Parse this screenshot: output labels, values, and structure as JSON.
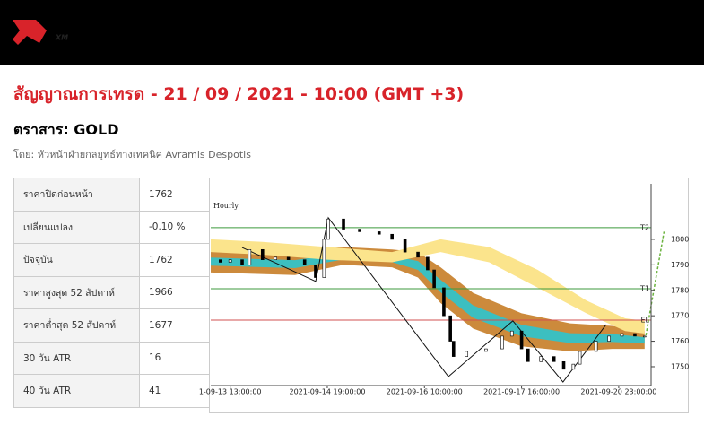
{
  "header": {
    "logo": "XM"
  },
  "title": "สัญญาณการเทรด - 21 / 09 / 2021 - 10:00 (GMT +3)",
  "instrument": "ตราสาร: GOLD",
  "byline": "โดย: หัวหน้าฝ่ายกลยุทธ์ทางเทคนิค Avramis Despotis",
  "table": {
    "rows": [
      [
        "ราคาปิดก่อนหน้า",
        "1762"
      ],
      [
        "เปลี่ยนแปลง",
        "-0.10 %"
      ],
      [
        "ปัจจุบัน",
        "1762"
      ],
      [
        "ราคาสูงสุด 52 สัปดาห์",
        "1966"
      ],
      [
        "ราคาต่ำสุด 52 สัปดาห์",
        "1677"
      ],
      [
        "30 วัน ATR",
        "16"
      ],
      [
        "40 วัน ATR",
        "41"
      ]
    ]
  },
  "chart_data": {
    "type": "candlestick",
    "title": "Hourly",
    "x": [
      -6,
      -3,
      0,
      3.7,
      6,
      10,
      14,
      18,
      23,
      26.4,
      29,
      30.3,
      35,
      40,
      46,
      50,
      54,
      58,
      61,
      63,
      66,
      68,
      69,
      73,
      79,
      84,
      87,
      90,
      92,
      96,
      100,
      103,
      106,
      108,
      113,
      117,
      121,
      125,
      128
    ],
    "values": [
      1792,
      1791,
      1792,
      1790,
      1796,
      1792,
      1793,
      1792,
      1790,
      1785,
      1800,
      1808,
      1804,
      1803,
      1802,
      1800,
      1795,
      1793,
      1788,
      1781,
      1770,
      1760,
      1754,
      1756,
      1757,
      1762,
      1764,
      1757,
      1752,
      1754,
      1752,
      1749,
      1751,
      1756,
      1760,
      1762,
      1763,
      1762,
      1762
    ],
    "bands": [
      {
        "color": "#cc8a3c",
        "x": [
          -6,
          20,
          35,
          50,
          58,
          65,
          75,
          90,
          105,
          118,
          128
        ],
        "upper": [
          1796,
          1795,
          1797,
          1796,
          1795,
          1789,
          1779,
          1771,
          1767,
          1766,
          1764
        ],
        "lower": [
          1787,
          1786,
          1790,
          1789,
          1785,
          1775,
          1765,
          1758,
          1756,
          1757,
          1757
        ]
      },
      {
        "color": "#fbe48c",
        "x": [
          -6,
          10,
          30,
          50,
          65,
          80,
          95,
          110,
          122,
          128
        ],
        "upper": [
          1800,
          1799,
          1797,
          1795,
          1800,
          1797,
          1788,
          1776,
          1769,
          1768
        ],
        "lower": [
          1795,
          1794,
          1792,
          1791,
          1795,
          1791,
          1781,
          1771,
          1764,
          1763
        ]
      }
    ],
    "zigzag": {
      "x": [
        3.7,
        26.4,
        30.3,
        67.4,
        87.3,
        102.8,
        116.1
      ],
      "values": [
        1796.8,
        1783.5,
        1808.5,
        1746.1,
        1768,
        1744,
        1766.5
      ]
    },
    "projection": {
      "x": [
        128.4,
        134
      ],
      "values": [
        1762.3,
        1803
      ],
      "color": "#6cb33f"
    },
    "levels": [
      {
        "label": "T2",
        "value": 1804.6,
        "color": "#3c9a3c"
      },
      {
        "label": "T1",
        "value": 1780.6,
        "color": "#3c9a3c"
      },
      {
        "label": "EL",
        "value": 1768.3,
        "color": "#d05050"
      }
    ],
    "xlim": [
      -6,
      130
    ],
    "ylim": [
      1742.6,
      1821.8
    ],
    "yticks": [
      1750,
      1760,
      1770,
      1780,
      1790,
      1800
    ],
    "xticks": [
      {
        "value": 0,
        "label": "1-09-13 13:00:00"
      },
      {
        "value": 30,
        "label": "2021-09-14 19:00:00"
      },
      {
        "value": 60,
        "label": "2021-09-16 10:00:00"
      },
      {
        "value": 90,
        "label": "2021-09-17 16:00:00"
      },
      {
        "value": 120,
        "label": "2021-09-20 23:00:00"
      }
    ]
  }
}
